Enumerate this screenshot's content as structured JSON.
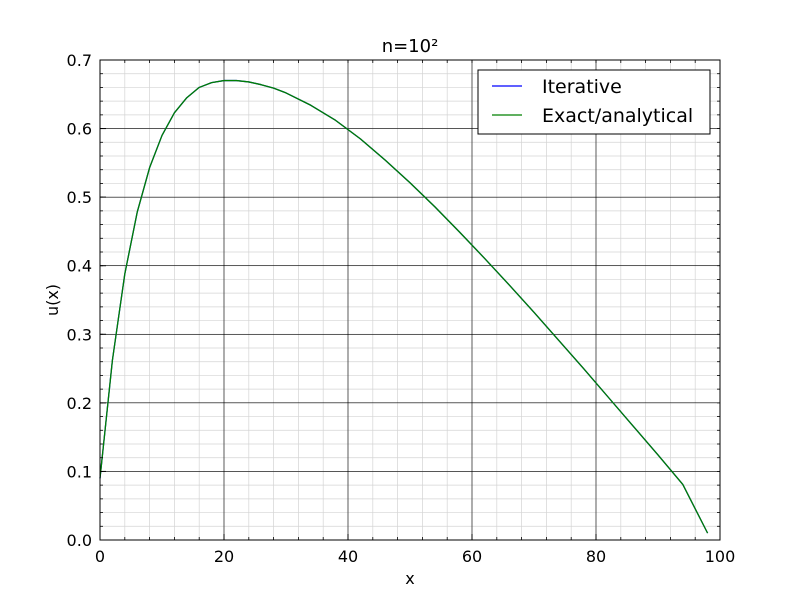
{
  "chart_data": {
    "type": "line",
    "title": "n=10²",
    "xlabel": "x",
    "ylabel": "u(x)",
    "xlim": [
      0,
      100
    ],
    "ylim": [
      0.0,
      0.7
    ],
    "xticks": [
      "0",
      "20",
      "40",
      "60",
      "80",
      "100"
    ],
    "yticks": [
      "0.0",
      "0.1",
      "0.2",
      "0.3",
      "0.4",
      "0.5",
      "0.6",
      "0.7"
    ],
    "grid": true,
    "minor_grid": true,
    "legend_position": "top-right",
    "x": [
      0,
      2,
      4,
      6,
      8,
      10,
      12,
      14,
      16,
      18,
      20,
      22,
      24,
      26,
      28,
      30,
      34,
      38,
      42,
      46,
      50,
      54,
      58,
      62,
      66,
      70,
      74,
      78,
      82,
      86,
      90,
      94,
      98
    ],
    "series": [
      {
        "name": "Iterative",
        "color": "#0000ff",
        "values": [
          0.09,
          0.262,
          0.388,
          0.478,
          0.543,
          0.59,
          0.623,
          0.645,
          0.66,
          0.667,
          0.67,
          0.67,
          0.668,
          0.664,
          0.659,
          0.652,
          0.634,
          0.612,
          0.585,
          0.554,
          0.521,
          0.486,
          0.449,
          0.411,
          0.372,
          0.332,
          0.291,
          0.25,
          0.208,
          0.166,
          0.124,
          0.081,
          0.01
        ]
      },
      {
        "name": "Exact/analytical",
        "color": "#008000",
        "values": [
          0.09,
          0.262,
          0.388,
          0.478,
          0.543,
          0.59,
          0.623,
          0.645,
          0.66,
          0.667,
          0.67,
          0.67,
          0.668,
          0.664,
          0.659,
          0.652,
          0.634,
          0.612,
          0.585,
          0.554,
          0.521,
          0.486,
          0.449,
          0.411,
          0.372,
          0.332,
          0.291,
          0.25,
          0.208,
          0.166,
          0.124,
          0.081,
          0.01
        ]
      }
    ]
  }
}
